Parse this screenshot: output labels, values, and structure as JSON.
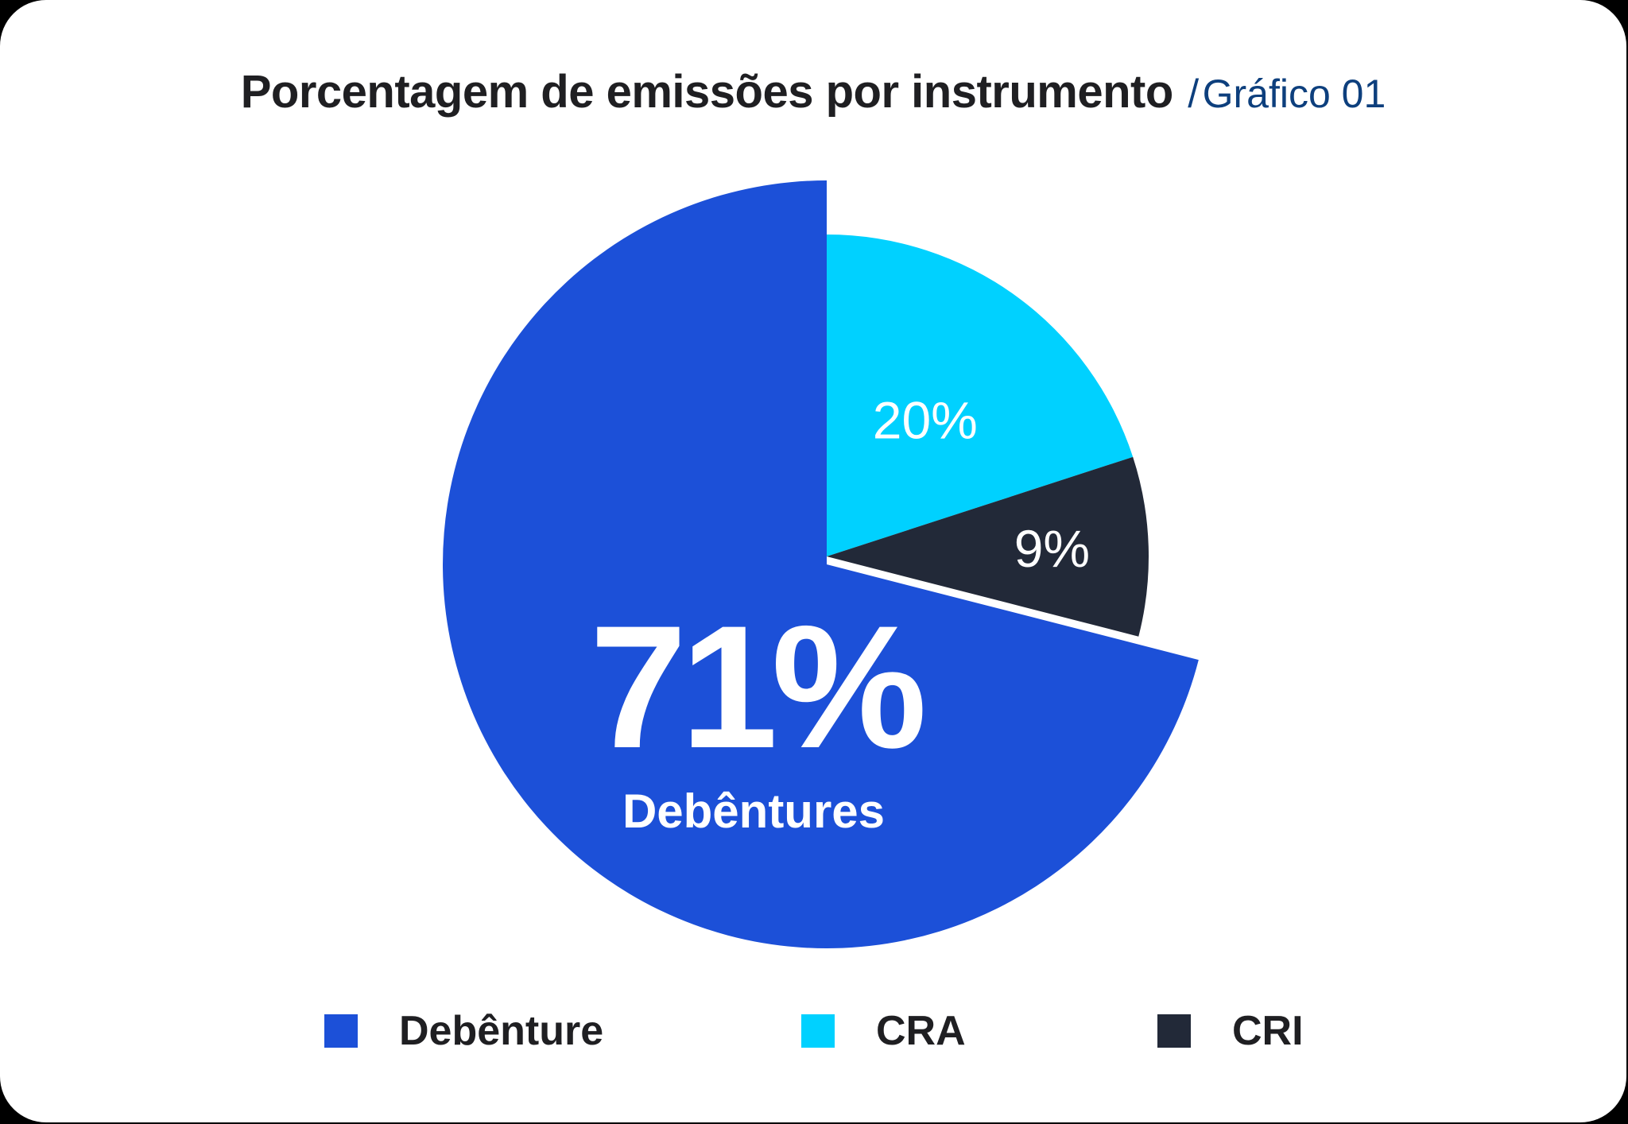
{
  "chart_data": {
    "type": "pie",
    "title": "Porcentagem de emissões por instrumento",
    "title_separator": "/",
    "subtitle": "Gráfico 01",
    "slices": [
      {
        "name": "Debênture",
        "value": 71,
        "label": "71%",
        "sublabel": "Debêntures",
        "color": "#1c50d8",
        "exploded": true
      },
      {
        "name": "CRA",
        "value": 20,
        "label": "20%",
        "color": "#00d1ff",
        "exploded": false
      },
      {
        "name": "CRI",
        "value": 9,
        "label": "9%",
        "color": "#222938",
        "exploded": false
      }
    ],
    "legend": {
      "position": "bottom",
      "items": [
        {
          "label": "Debênture",
          "color": "#1c50d8"
        },
        {
          "label": "CRA",
          "color": "#00d1ff"
        },
        {
          "label": "CRI",
          "color": "#222938"
        }
      ]
    }
  }
}
